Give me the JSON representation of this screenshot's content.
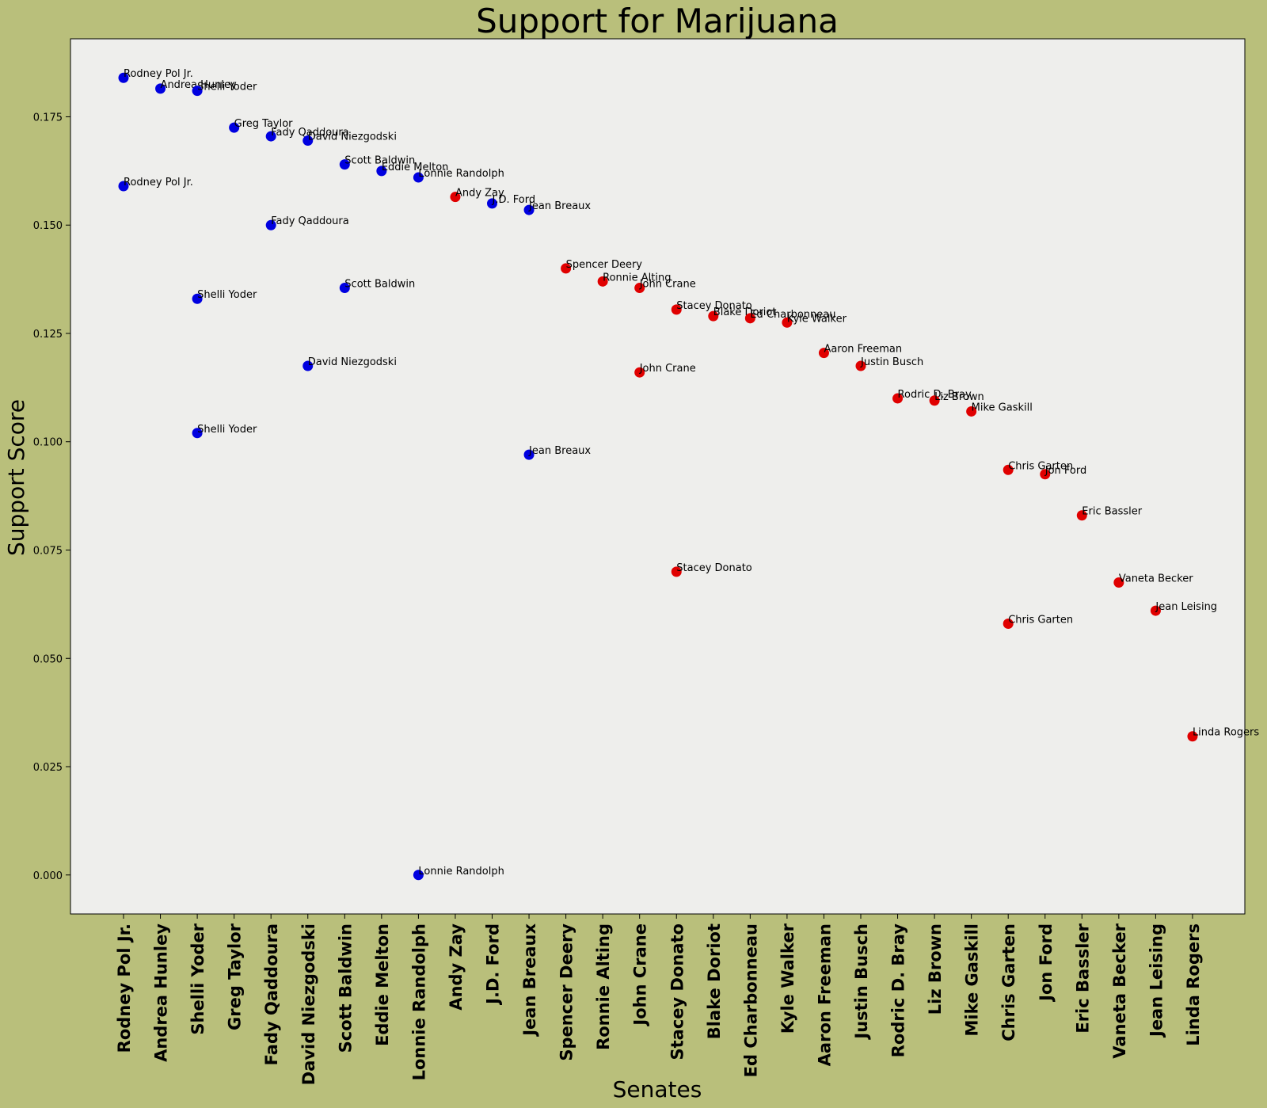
{
  "chart_data": {
    "type": "scatter",
    "title": "Support for Marijuana",
    "xlabel": "Senates",
    "ylabel": "Support Score",
    "ylim": [
      -0.009,
      0.193
    ],
    "yticks": [
      "0.000",
      "0.025",
      "0.050",
      "0.075",
      "0.100",
      "0.125",
      "0.150",
      "0.175"
    ],
    "categories": [
      "Rodney Pol Jr.",
      "Andrea Hunley",
      "Shelli Yoder",
      "Greg Taylor",
      "Fady Qaddoura",
      "David Niezgodski",
      "Scott Baldwin",
      "Eddie Melton",
      "Lonnie Randolph",
      "Andy Zay",
      "J.D. Ford",
      "Jean Breaux",
      "Spencer Deery",
      "Ronnie Alting",
      "John Crane",
      "Stacey Donato",
      "Blake Doriot",
      "Ed Charbonneau",
      "Kyle Walker",
      "Aaron Freeman",
      "Justin Busch",
      "Rodric D. Bray",
      "Liz Brown",
      "Mike Gaskill",
      "Chris Garten",
      "Jon Ford",
      "Eric Bassler",
      "Vaneta Becker",
      "Jean Leising",
      "Linda Rogers"
    ],
    "colors": {
      "blue": "#0000e0",
      "red": "#e00000"
    },
    "points": [
      {
        "x": "Rodney Pol Jr.",
        "y": 0.184,
        "color": "blue",
        "label": "Rodney Pol Jr."
      },
      {
        "x": "Rodney Pol Jr.",
        "y": 0.159,
        "color": "blue",
        "label": "Rodney Pol Jr."
      },
      {
        "x": "Andrea Hunley",
        "y": 0.1815,
        "color": "blue",
        "label": "Andrea Hunley"
      },
      {
        "x": "Shelli Yoder",
        "y": 0.181,
        "color": "blue",
        "label": "Shelli Yoder"
      },
      {
        "x": "Shelli Yoder",
        "y": 0.133,
        "color": "blue",
        "label": "Shelli Yoder"
      },
      {
        "x": "Shelli Yoder",
        "y": 0.102,
        "color": "blue",
        "label": "Shelli Yoder"
      },
      {
        "x": "Greg Taylor",
        "y": 0.1725,
        "color": "blue",
        "label": "Greg Taylor"
      },
      {
        "x": "Fady Qaddoura",
        "y": 0.1705,
        "color": "blue",
        "label": "Fady Qaddoura"
      },
      {
        "x": "Fady Qaddoura",
        "y": 0.15,
        "color": "blue",
        "label": "Fady Qaddoura"
      },
      {
        "x": "David Niezgodski",
        "y": 0.1695,
        "color": "blue",
        "label": "David Niezgodski"
      },
      {
        "x": "David Niezgodski",
        "y": 0.1175,
        "color": "blue",
        "label": "David Niezgodski"
      },
      {
        "x": "Scott Baldwin",
        "y": 0.164,
        "color": "blue",
        "label": "Scott Baldwin"
      },
      {
        "x": "Scott Baldwin",
        "y": 0.1355,
        "color": "blue",
        "label": "Scott Baldwin"
      },
      {
        "x": "Eddie Melton",
        "y": 0.1625,
        "color": "blue",
        "label": "Eddie Melton"
      },
      {
        "x": "Lonnie Randolph",
        "y": 0.161,
        "color": "blue",
        "label": "Lonnie Randolph"
      },
      {
        "x": "Lonnie Randolph",
        "y": 0.0,
        "color": "blue",
        "label": "Lonnie Randolph"
      },
      {
        "x": "Andy Zay",
        "y": 0.1565,
        "color": "red",
        "label": "Andy Zay"
      },
      {
        "x": "J.D. Ford",
        "y": 0.155,
        "color": "blue",
        "label": "J.D. Ford"
      },
      {
        "x": "Jean Breaux",
        "y": 0.1535,
        "color": "blue",
        "label": "Jean Breaux"
      },
      {
        "x": "Jean Breaux",
        "y": 0.097,
        "color": "blue",
        "label": "Jean Breaux"
      },
      {
        "x": "Spencer Deery",
        "y": 0.14,
        "color": "red",
        "label": "Spencer Deery"
      },
      {
        "x": "Ronnie Alting",
        "y": 0.137,
        "color": "red",
        "label": "Ronnie Alting"
      },
      {
        "x": "John Crane",
        "y": 0.1355,
        "color": "red",
        "label": "John Crane"
      },
      {
        "x": "John Crane",
        "y": 0.116,
        "color": "red",
        "label": "John Crane"
      },
      {
        "x": "Stacey Donato",
        "y": 0.1305,
        "color": "red",
        "label": "Stacey Donato"
      },
      {
        "x": "Stacey Donato",
        "y": 0.07,
        "color": "red",
        "label": "Stacey Donato"
      },
      {
        "x": "Blake Doriot",
        "y": 0.129,
        "color": "red",
        "label": "Blake Doriot"
      },
      {
        "x": "Ed Charbonneau",
        "y": 0.1285,
        "color": "red",
        "label": "Ed Charbonneau"
      },
      {
        "x": "Kyle Walker",
        "y": 0.1275,
        "color": "red",
        "label": "Kyle Walker"
      },
      {
        "x": "Aaron Freeman",
        "y": 0.1205,
        "color": "red",
        "label": "Aaron Freeman"
      },
      {
        "x": "Justin Busch",
        "y": 0.1175,
        "color": "red",
        "label": "Justin Busch"
      },
      {
        "x": "Rodric D. Bray",
        "y": 0.11,
        "color": "red",
        "label": "Rodric D. Bray"
      },
      {
        "x": "Liz Brown",
        "y": 0.1095,
        "color": "red",
        "label": "Liz Brown"
      },
      {
        "x": "Mike Gaskill",
        "y": 0.107,
        "color": "red",
        "label": "Mike Gaskill"
      },
      {
        "x": "Chris Garten",
        "y": 0.0935,
        "color": "red",
        "label": "Chris Garten"
      },
      {
        "x": "Chris Garten",
        "y": 0.058,
        "color": "red",
        "label": "Chris Garten"
      },
      {
        "x": "Jon Ford",
        "y": 0.0925,
        "color": "red",
        "label": "Jon Ford"
      },
      {
        "x": "Eric Bassler",
        "y": 0.083,
        "color": "red",
        "label": "Eric Bassler"
      },
      {
        "x": "Vaneta Becker",
        "y": 0.0675,
        "color": "red",
        "label": "Vaneta Becker"
      },
      {
        "x": "Jean Leising",
        "y": 0.061,
        "color": "red",
        "label": "Jean Leising"
      },
      {
        "x": "Linda Rogers",
        "y": 0.032,
        "color": "red",
        "label": "Linda Rogers"
      }
    ]
  }
}
